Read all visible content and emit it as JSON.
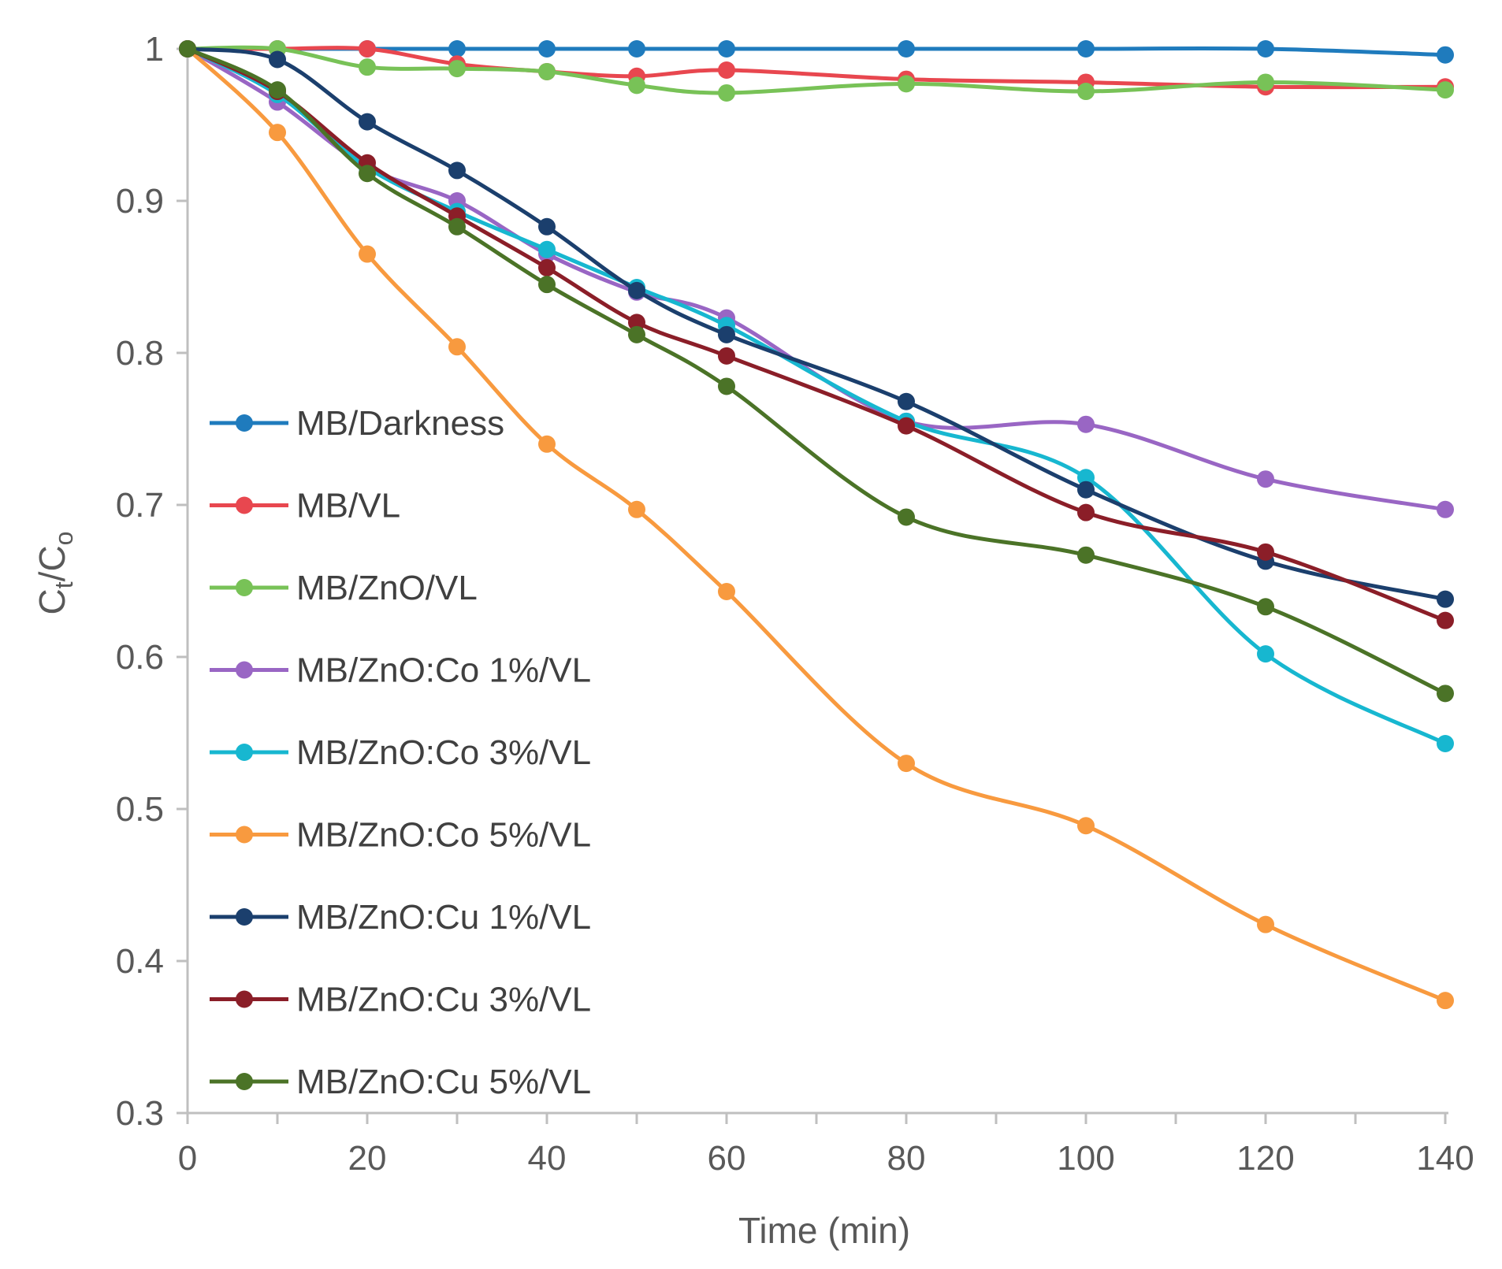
{
  "chart_data": {
    "type": "line",
    "title": "",
    "xlabel": "Time (min)",
    "ylabel_main": "C",
    "ylabel_sub_t": "t",
    "ylabel_slash": "/C",
    "ylabel_sub_o": "o",
    "x": [
      0,
      10,
      20,
      30,
      40,
      50,
      60,
      80,
      100,
      120,
      140
    ],
    "xticks": [
      0,
      20,
      40,
      60,
      80,
      100,
      120,
      140
    ],
    "xtick_labels": [
      "0",
      "20",
      "40",
      "60",
      "80",
      "100",
      "120",
      "140"
    ],
    "yticks": [
      0.3,
      0.4,
      0.5,
      0.6,
      0.7,
      0.8,
      0.9,
      1
    ],
    "ytick_labels": [
      "0.3",
      "0.4",
      "0.5",
      "0.6",
      "0.7",
      "0.8",
      "0.9",
      "1"
    ],
    "xlim": [
      0,
      140
    ],
    "ylim": [
      0.3,
      1.0
    ],
    "grid": false,
    "legend_position": "left",
    "series": [
      {
        "name": "MB/Darkness",
        "color": "#1F7BBD",
        "values": [
          1.0,
          1.0,
          1.0,
          1.0,
          1.0,
          1.0,
          1.0,
          1.0,
          1.0,
          1.0,
          0.996
        ]
      },
      {
        "name": "MB/VL",
        "color": "#E8474F",
        "values": [
          1.0,
          1.0,
          1.0,
          0.99,
          0.985,
          0.982,
          0.986,
          0.98,
          0.978,
          0.975,
          0.975
        ]
      },
      {
        "name": "MB/ZnO/VL",
        "color": "#78C257",
        "values": [
          1.0,
          1.0,
          0.988,
          0.987,
          0.985,
          0.976,
          0.971,
          0.977,
          0.972,
          0.978,
          0.973
        ]
      },
      {
        "name": "MB/ZnO:Co 1%/VL",
        "color": "#9966C4",
        "values": [
          1.0,
          0.965,
          0.922,
          0.9,
          0.865,
          0.84,
          0.823,
          0.755,
          0.753,
          0.717,
          0.697
        ]
      },
      {
        "name": "MB/ZnO:Co 3%/VL",
        "color": "#17B7D0",
        "values": [
          1.0,
          0.97,
          0.922,
          0.893,
          0.868,
          0.843,
          0.818,
          0.755,
          0.718,
          0.602,
          0.543
        ]
      },
      {
        "name": "MB/ZnO:Co 5%/VL",
        "color": "#F89A3F",
        "values": [
          1.0,
          0.945,
          0.865,
          0.804,
          0.74,
          0.697,
          0.643,
          0.53,
          0.489,
          0.424,
          0.374
        ]
      },
      {
        "name": "MB/ZnO:Cu 1%/VL",
        "color": "#1B3F6D",
        "values": [
          1.0,
          0.993,
          0.952,
          0.92,
          0.883,
          0.841,
          0.812,
          0.768,
          0.71,
          0.663,
          0.638
        ]
      },
      {
        "name": "MB/ZnO:Cu 3%/VL",
        "color": "#8B1E28",
        "values": [
          1.0,
          0.972,
          0.925,
          0.89,
          0.856,
          0.82,
          0.798,
          0.752,
          0.695,
          0.669,
          0.624
        ]
      },
      {
        "name": "MB/ZnO:Cu 5%/VL",
        "color": "#4B7327",
        "values": [
          1.0,
          0.973,
          0.918,
          0.883,
          0.845,
          0.812,
          0.778,
          0.692,
          0.667,
          0.633,
          0.576
        ]
      }
    ]
  }
}
